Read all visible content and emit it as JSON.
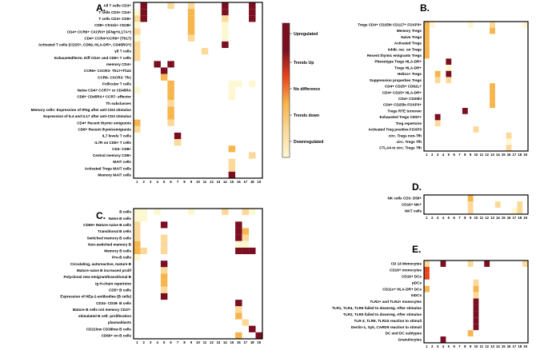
{
  "legend": {
    "items": [
      "Upregulated",
      "Trends Up",
      "No difference",
      "Trends down",
      "Downregulated"
    ],
    "colors": {
      "up": "#7a0f22",
      "trend_up": "#e8441d",
      "none": "#f7b54d",
      "trend_down": "#fcd99a",
      "down": "#fdf8d2"
    }
  },
  "chart_data": [
    {
      "type": "heatmap",
      "panel": "A.",
      "columns": [
        "1",
        "2",
        "3",
        "4",
        "5",
        "6",
        "7",
        "8",
        "9",
        "10",
        "11",
        "12",
        "13",
        "14",
        "15",
        "16",
        "17",
        "18",
        "19"
      ],
      "rows": [
        "All T cells CD3+",
        "T cells CD3+ CD4+",
        "T cells CD3+ CD8+",
        "CD8+ CD11b+ CD28+",
        "CD4+ CCR6+ CXCR3+ (IFNg+IL17A+)",
        "CD4+ CCR4+CCR6+ (Th17)",
        "Activated T cells (CD25+, CD69, HLA-DR+, CD45RO+)",
        "γδ T cells",
        "Exhausted/term. Diff CD4+ and CD8+ T cells",
        "memory CD4+",
        "CCR6+ CXCR3- Th17+Th22",
        "CCR6- CXCR3- Th1",
        "Follicular T cells",
        "Naïve CD4+ CCR7+ or CD45RA",
        "CD8+ CD45RA+ CCR7- effector",
        "Th subclasses",
        "Memory cells: Expression of IFNg after anti-CD3 stimulus",
        "Expression of IL4 and IL17 after anti-CD3 stimulus",
        "CD4+ Recent thymic emigrants",
        "CD8+ Recent thymicemigrants",
        "IL7 levels T cells",
        "IL7R on CD8+ T cells",
        "CD3- CD8+",
        "Central memory CD8+",
        "MAIT cells",
        "Activated Tregs MAIT cells",
        "Memory MAIT cells"
      ],
      "cells": [
        [
          [
            2,
            "up"
          ],
          [
            6,
            "trend_down"
          ],
          [
            9,
            "trend_down"
          ],
          [
            14,
            "up"
          ],
          [
            18,
            "up"
          ]
        ],
        [
          [
            1,
            "down"
          ],
          [
            2,
            "up"
          ],
          [
            9,
            "none"
          ],
          [
            14,
            "up"
          ],
          [
            18,
            "up"
          ]
        ],
        [
          [
            1,
            "trend_down"
          ],
          [
            2,
            "up"
          ],
          [
            9,
            "none"
          ],
          [
            14,
            "trend_down"
          ],
          [
            18,
            "up"
          ]
        ],
        [
          [
            1,
            "down"
          ],
          [
            9,
            "none"
          ],
          [
            14,
            "down"
          ]
        ],
        [
          [
            1,
            "trend_down"
          ],
          [
            9,
            "none"
          ],
          [
            14,
            "down"
          ]
        ],
        [
          [
            1,
            "down"
          ],
          [
            9,
            "trend_down"
          ],
          [
            14,
            "down"
          ]
        ],
        [
          [
            1,
            "trend_down"
          ],
          [
            14,
            "up"
          ]
        ],
        [
          [
            1,
            "trend_down"
          ],
          [
            11,
            "trend_down"
          ]
        ],
        [
          [
            1,
            "trend_down"
          ]
        ],
        [
          [
            4,
            "up"
          ],
          [
            6,
            "up"
          ]
        ],
        [
          [
            5,
            "up"
          ]
        ],
        [
          [
            5,
            "none"
          ]
        ],
        [
          [
            6,
            "none"
          ],
          [
            15,
            "down"
          ],
          [
            16,
            "down"
          ],
          [
            18,
            "down"
          ]
        ],
        [
          [
            1,
            "down"
          ],
          [
            6,
            "none"
          ],
          [
            15,
            "down"
          ]
        ],
        [
          [
            6,
            "none"
          ],
          [
            15,
            "down"
          ]
        ],
        [
          [
            6,
            "trend_down"
          ]
        ],
        [
          [
            6,
            "none"
          ]
        ],
        [
          [
            6,
            "none"
          ]
        ],
        [
          [
            1,
            "none"
          ],
          [
            6,
            "trend_down"
          ]
        ],
        [
          [
            1,
            "trend_down"
          ]
        ],
        [
          [
            7,
            "up"
          ]
        ],
        [
          [
            7,
            "trend_down"
          ]
        ],
        [
          [
            15,
            "none"
          ]
        ],
        [
          [
            18,
            "trend_down"
          ]
        ],
        [
          [
            15,
            "trend_down"
          ]
        ],
        [
          [
            15,
            "trend_down"
          ]
        ],
        [
          [
            15,
            "up"
          ]
        ]
      ]
    },
    {
      "type": "heatmap",
      "panel": "B.",
      "columns": [
        "1",
        "2",
        "3",
        "4",
        "5",
        "6",
        "7",
        "8",
        "9",
        "10",
        "11",
        "12",
        "13",
        "14",
        "15",
        "16",
        "17",
        "18",
        "19"
      ],
      "rows": [
        "Tregs CD4+ CD25hi CD127+ FOXP3+",
        "Memory Tregs",
        "Naive Tregs",
        "Activated Tregs",
        "Inhib. rec. on Tregs",
        "Recent thymic emigrants Tregs",
        "Phenotype Tregs HLA-DR+",
        "Tregs HLA-DR+",
        "Helios+ Tregs",
        "Suppression properties Tregs",
        "CD4+ CD25+ CD62L+",
        "CD4+ CD25+ HLA-DR+",
        "CD4+ CD25hi",
        "CD4+ CD25lo FOXP3+",
        "Tregs RTE turnover",
        "Exhausted Tregs CD57+",
        "Treg repertoire",
        "Activated Treg positive FOXP3",
        "circ. Tregs non-Tfh",
        "circ. Tregs Tfh",
        "CTLA4 in circ. Tregs Tfh"
      ],
      "cells": [
        [
          [
            1,
            "none"
          ],
          [
            2,
            "down"
          ],
          [
            9,
            "down"
          ],
          [
            13,
            "trend_down"
          ],
          [
            19,
            "down"
          ]
        ],
        [
          [
            1,
            "none"
          ],
          [
            13,
            "none"
          ]
        ],
        [
          [
            1,
            "none"
          ]
        ],
        [
          [
            1,
            "none"
          ]
        ],
        [
          [
            1,
            "none"
          ]
        ],
        [
          [
            1,
            "none"
          ]
        ],
        [
          [
            5,
            "up"
          ]
        ],
        [
          [
            5,
            "down"
          ]
        ],
        [
          [
            3,
            "none"
          ],
          [
            5,
            "up"
          ]
        ],
        [
          [
            3,
            "trend_down"
          ],
          [
            5,
            "trend_down"
          ]
        ],
        [
          [
            13,
            "none"
          ]
        ],
        [
          [
            13,
            "none"
          ]
        ],
        [
          [
            13,
            "none"
          ]
        ],
        [
          [
            13,
            "none"
          ]
        ],
        [
          [
            8,
            "up"
          ]
        ],
        [
          [
            3,
            "up"
          ]
        ],
        [
          [
            3,
            "trend_down"
          ]
        ],
        [
          [
            10,
            "trend_down"
          ]
        ],
        [
          [
            16,
            "trend_down"
          ]
        ],
        [
          [
            16,
            "down"
          ]
        ],
        [
          [
            16,
            "trend_down"
          ]
        ]
      ]
    },
    {
      "type": "heatmap",
      "panel": "C.",
      "columns": [
        "1",
        "2",
        "3",
        "4",
        "5",
        "6",
        "7",
        "8",
        "9",
        "10",
        "11",
        "12",
        "13",
        "14",
        "15",
        "16",
        "17",
        "18",
        "19"
      ],
      "rows": [
        "B cells",
        "Naïve B cells",
        "CD69+ Mature naive B cells",
        "Transitional B cells",
        "Switched memory B cells",
        "Non-switched memory B",
        "Memory B cells",
        "Pro-B cells",
        "Circulating, autoreactive, mature B",
        "Mature naive B increased prolif",
        "Polyclonal new emigrant/transitional B",
        "Ig H-chain repertoire",
        "CD5+ B cells",
        "Expression of HEp-2-antibodies (B cells)",
        "CD24- CD38- B cells",
        "Mature B cells not memory CD27-",
        "stimulated B cell: proliferation",
        "plasmablasts",
        "CD21low CD38low B cells",
        "CD69+ on B cells"
      ],
      "cells": [
        [
          [
            1,
            "down"
          ],
          [
            2,
            "down"
          ],
          [
            4,
            "down"
          ],
          [
            9,
            "down"
          ],
          [
            14,
            "trend_down"
          ],
          [
            17,
            "trend_down"
          ],
          [
            18,
            "down"
          ]
        ],
        [
          [
            1,
            "down"
          ],
          [
            2,
            "down"
          ]
        ],
        [
          [
            1,
            "trend_down"
          ],
          [
            5,
            "up"
          ],
          [
            16,
            "up"
          ]
        ],
        [
          [
            1,
            "trend_down"
          ],
          [
            16,
            "up"
          ],
          [
            17,
            "none"
          ]
        ],
        [
          [
            1,
            "trend_down"
          ],
          [
            5,
            "trend_down"
          ],
          [
            16,
            "up"
          ],
          [
            17,
            "trend_down"
          ]
        ],
        [
          [
            1,
            "none"
          ],
          [
            5,
            "trend_down"
          ],
          [
            16,
            "down"
          ],
          [
            17,
            "down"
          ]
        ],
        [
          [
            1,
            "none"
          ],
          [
            2,
            "trend_down"
          ],
          [
            5,
            "trend_down"
          ],
          [
            16,
            "up"
          ],
          [
            17,
            "up"
          ],
          [
            18,
            "up"
          ]
        ],
        [
          [
            1,
            "down"
          ]
        ],
        [
          [
            5,
            "up"
          ]
        ],
        [
          [
            5,
            "trend_down"
          ]
        ],
        [
          [
            5,
            "none"
          ]
        ],
        [
          [
            5,
            "none"
          ]
        ],
        [
          [
            5,
            "trend_down"
          ]
        ],
        [
          [
            5,
            "up"
          ]
        ],
        [
          [
            16,
            "up"
          ]
        ],
        [
          [
            16,
            "trend_down"
          ]
        ],
        [
          [
            16,
            "none"
          ]
        ],
        [
          [
            17,
            "trend_down"
          ]
        ],
        [
          [
            18,
            "up"
          ]
        ],
        [
          [
            16,
            "none"
          ],
          [
            19,
            "up"
          ]
        ]
      ]
    },
    {
      "type": "heatmap",
      "panel": "D.",
      "columns": [
        "1",
        "2",
        "3",
        "4",
        "5",
        "6",
        "7",
        "8",
        "9",
        "10",
        "11",
        "12",
        "13",
        "14",
        "15",
        "16",
        "17",
        "18",
        "19"
      ],
      "rows": [
        "NK cells CD3- D56+",
        "CD16+ NK+",
        "NKT cells"
      ],
      "cells": [
        [
          [
            9,
            "none"
          ]
        ],
        [
          [
            9,
            "trend_down"
          ],
          [
            14,
            "trend_down"
          ],
          [
            18,
            "trend_down"
          ]
        ],
        [
          [
            9,
            "trend_down"
          ],
          [
            17,
            "down"
          ],
          [
            18,
            "trend_down"
          ]
        ]
      ]
    },
    {
      "type": "heatmap",
      "panel": "E.",
      "columns": [
        "1",
        "2",
        "3",
        "4",
        "5",
        "6",
        "7",
        "8",
        "9",
        "10",
        "11",
        "12",
        "13",
        "14",
        "15",
        "16",
        "17",
        "18",
        "19"
      ],
      "rows": [
        "CD 14 Monocytes",
        "CD16+ monocytes",
        "CD16+ DCs",
        "pDCs",
        "CD11c+ HLA-DR+ DCs",
        "mDCs",
        "TLR2+ and TLR4+ monocytes",
        "TLR1, TLR4, TLR6 failed to downreg. After stimulus",
        "TLR2, TLR5 failed to downreg. After stimulus",
        "TLR-3, TLR9, TLR10 reaction to stimuli",
        "Dectin-1, Syk, CARD9 reaction to stimuli",
        "DC and DC subtypes",
        "Granulocytes"
      ],
      "cells": [
        [
          [
            1,
            "trend_down"
          ],
          [
            4,
            "up"
          ],
          [
            9,
            "trend_down"
          ],
          [
            12,
            "up"
          ],
          [
            19,
            "trend_down"
          ]
        ],
        [
          [
            1,
            "trend_up"
          ]
        ],
        [
          [
            1,
            "trend_up"
          ]
        ],
        [
          [
            10,
            "trend_down"
          ]
        ],
        [
          [
            1,
            "none"
          ],
          [
            10,
            "none"
          ]
        ],
        [
          [
            10,
            "trend_down"
          ]
        ],
        [
          [
            10,
            "up"
          ]
        ],
        [
          [
            10,
            "up"
          ]
        ],
        [
          [
            10,
            "up"
          ]
        ],
        [
          [
            10,
            "up"
          ]
        ],
        [
          [
            10,
            "up"
          ]
        ],
        [
          [
            9,
            "none"
          ]
        ],
        [
          [
            4,
            "up"
          ]
        ]
      ]
    }
  ]
}
